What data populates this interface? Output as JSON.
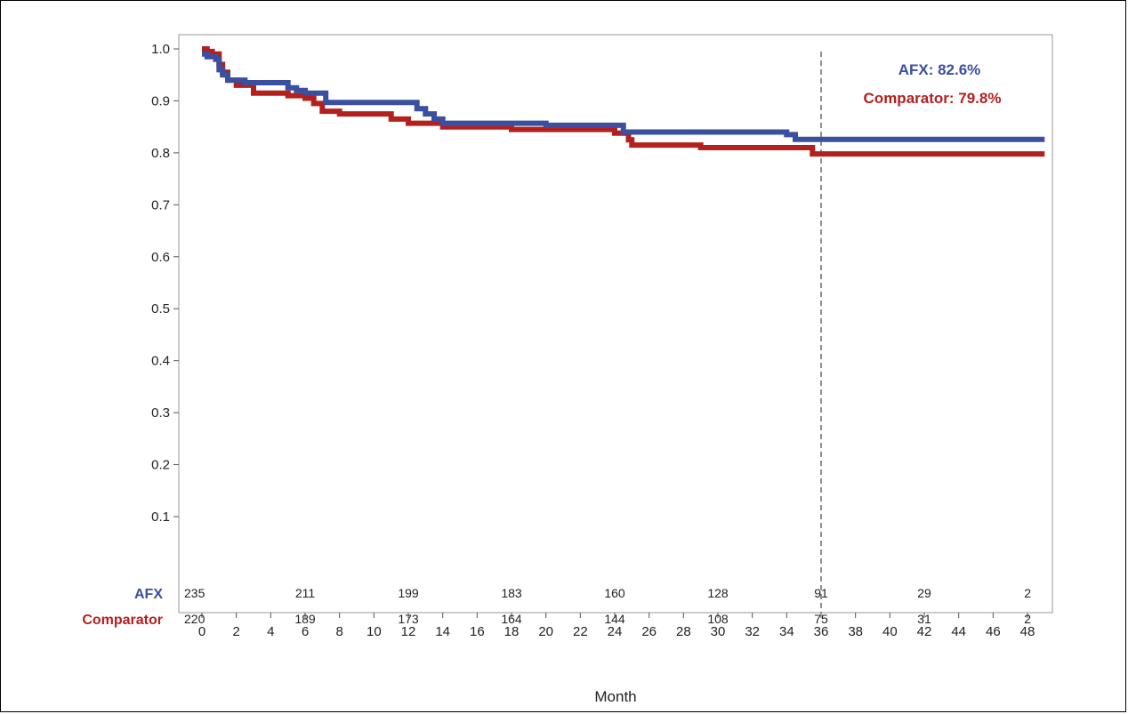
{
  "chart_data": {
    "type": "line",
    "xlabel": "Month",
    "ylabel": "",
    "xlim": [
      -0.5,
      49
    ],
    "ylim": [
      0,
      1.02
    ],
    "x_ticks": [
      0,
      2,
      4,
      6,
      8,
      10,
      12,
      14,
      16,
      18,
      20,
      22,
      24,
      26,
      28,
      30,
      32,
      34,
      36,
      38,
      40,
      42,
      44,
      46,
      48
    ],
    "y_ticks": [
      0.1,
      0.2,
      0.3,
      0.4,
      0.5,
      0.6,
      0.7,
      0.8,
      0.9,
      1.0
    ],
    "y_tick_labels": [
      "0.1",
      "0.2",
      "0.3",
      "0.4",
      "0.5",
      "0.6",
      "0.7",
      "0.8",
      "0.9",
      "1.0"
    ],
    "grid": false,
    "legend": "none",
    "reference_line": {
      "x": 36,
      "style": "dashed"
    },
    "annotations": [
      {
        "text": "AFX: 82.6%",
        "color": "#3a4fa0"
      },
      {
        "text": "Comparator: 79.8%",
        "color": "#b3201e"
      }
    ],
    "series": [
      {
        "name": "AFX",
        "color": "#3a4fa0",
        "step": true,
        "x": [
          0,
          0.3,
          0.8,
          1.0,
          1.2,
          1.5,
          2.5,
          5.0,
          5.5,
          6.0,
          7.2,
          12.5,
          13.0,
          13.5,
          14.0,
          20.0,
          24.5,
          34.0,
          34.5,
          49.0
        ],
        "y": [
          0.99,
          0.985,
          0.98,
          0.96,
          0.95,
          0.94,
          0.935,
          0.925,
          0.92,
          0.915,
          0.897,
          0.885,
          0.875,
          0.865,
          0.857,
          0.853,
          0.84,
          0.835,
          0.826,
          0.826
        ]
      },
      {
        "name": "Comparator",
        "color": "#b3201e",
        "step": true,
        "x": [
          0,
          0.3,
          0.6,
          1.0,
          1.2,
          1.5,
          2.0,
          3.0,
          5.0,
          6.0,
          6.5,
          7.0,
          8.0,
          11.0,
          12.0,
          14.0,
          18.0,
          24.0,
          24.8,
          25.0,
          29.0,
          35.5,
          49.0
        ],
        "y": [
          1.0,
          0.995,
          0.99,
          0.97,
          0.955,
          0.94,
          0.93,
          0.915,
          0.91,
          0.905,
          0.895,
          0.88,
          0.875,
          0.865,
          0.857,
          0.85,
          0.845,
          0.838,
          0.825,
          0.815,
          0.81,
          0.798,
          0.798
        ]
      }
    ]
  },
  "risk_table": {
    "times": [
      0,
      6,
      12,
      18,
      24,
      30,
      36,
      42,
      48
    ],
    "rows": [
      {
        "label": "AFX",
        "color": "#3a4fa0",
        "values": [
          "235",
          "211",
          "199",
          "183",
          "160",
          "128",
          "91",
          "29",
          "2"
        ]
      },
      {
        "label": "Comparator",
        "color": "#b3201e",
        "values": [
          "220",
          "189",
          "173",
          "164",
          "144",
          "108",
          "75",
          "31",
          "2"
        ]
      }
    ]
  }
}
